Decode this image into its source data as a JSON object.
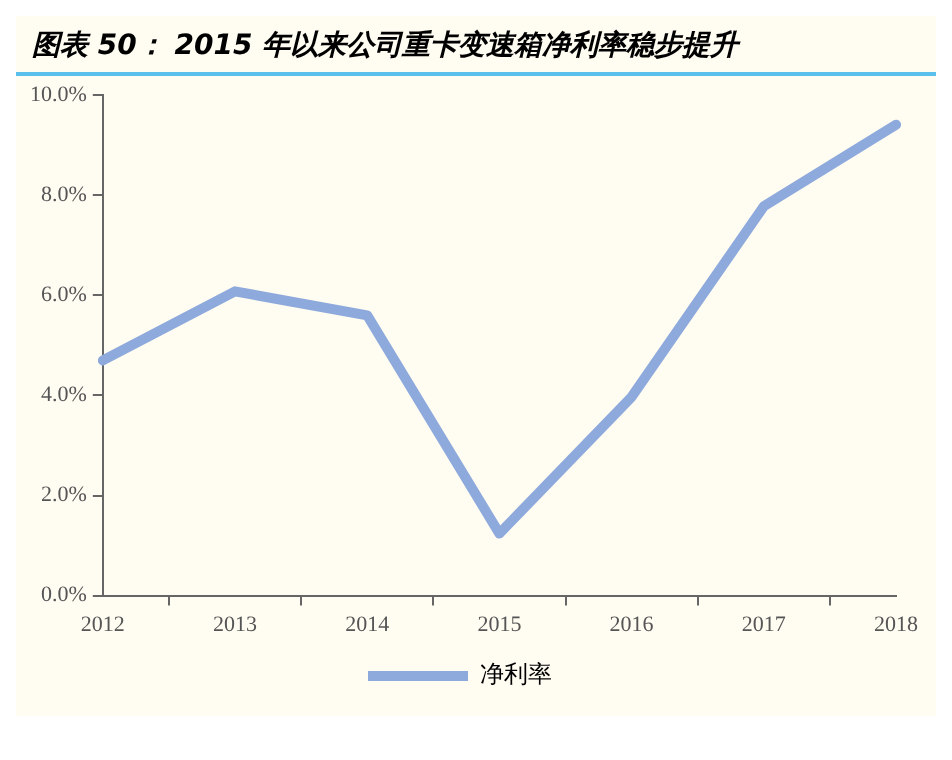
{
  "chart_data": {
    "type": "line",
    "title": "图表 50： 2015 年以来公司重卡变速箱净利率稳步提升",
    "categories": [
      "2012",
      "2013",
      "2014",
      "2015",
      "2016",
      "2017",
      "2018"
    ],
    "series": [
      {
        "name": "净利率",
        "color": "#8eaadc",
        "values": [
          4.7,
          6.08,
          5.6,
          1.24,
          3.97,
          7.78,
          9.41
        ]
      }
    ],
    "ylim": [
      0,
      10
    ],
    "yticks": [
      {
        "value": 0,
        "label": "0.0%"
      },
      {
        "value": 2,
        "label": "2.0%"
      },
      {
        "value": 4,
        "label": "4.0%"
      },
      {
        "value": 6,
        "label": "6.0%"
      },
      {
        "value": 8,
        "label": "8.0%"
      },
      {
        "value": 10,
        "label": "10.0%"
      }
    ],
    "grid": false,
    "legend": "bottom",
    "marker": "none",
    "line_style": "solid"
  }
}
